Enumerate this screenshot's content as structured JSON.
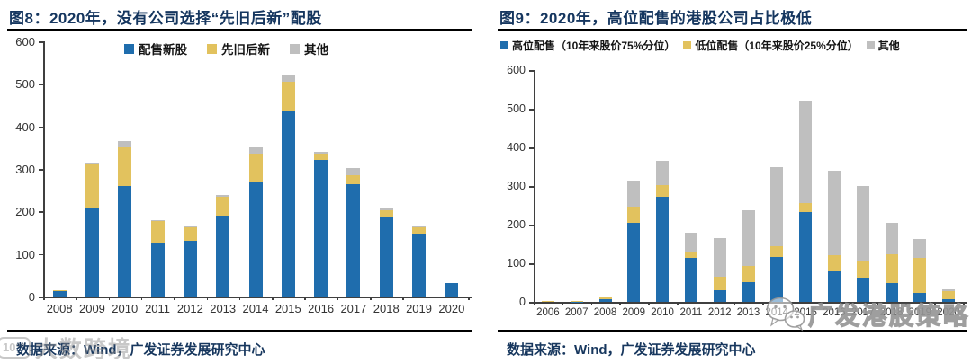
{
  "figures": [
    {
      "title": "图8：2020年，没有公司选择“先旧后新”配股",
      "source": "数据来源：Wind，广发证券发展研究中心"
    },
    {
      "title": "图9：2020年，高位配售的港股公司占比极低",
      "source": "数据来源：Wind，广发证券发展研究中心"
    }
  ],
  "watermarks": {
    "left": {
      "logo": "10°°",
      "text": "大数跨境"
    },
    "right": {
      "icon": "wechat-icon",
      "text": "广发港股策略"
    }
  },
  "colors": {
    "bar_blue": "#1F6DAD",
    "bar_yellow": "#E2C25E",
    "bar_gray": "#BFBFBF",
    "title_navy": "#15365f",
    "source_navy": "#17375e"
  },
  "chart_data": [
    {
      "type": "bar",
      "stacked": true,
      "title": "图8：2020年，没有公司选择“先旧后新”配股",
      "categories": [
        "2008",
        "2009",
        "2010",
        "2011",
        "2012",
        "2013",
        "2014",
        "2015",
        "2016",
        "2017",
        "2018",
        "2019",
        "2020"
      ],
      "series": [
        {
          "name": "配售新股",
          "color": "#1F6DAD",
          "values": [
            13,
            210,
            260,
            127,
            130,
            190,
            268,
            438,
            322,
            265,
            186,
            148,
            32
          ]
        },
        {
          "name": "先旧后新",
          "color": "#E2C25E",
          "values": [
            2,
            100,
            90,
            50,
            33,
            45,
            67,
            67,
            13,
            20,
            16,
            14,
            0
          ]
        },
        {
          "name": "其他",
          "color": "#BFBFBF",
          "values": [
            0,
            5,
            15,
            3,
            2,
            3,
            15,
            15,
            5,
            17,
            5,
            2,
            0
          ]
        }
      ],
      "xlabel": "",
      "ylabel": "",
      "ylim": [
        0,
        600
      ],
      "ytick_step": 100,
      "grid": false,
      "legend_position": "top-center"
    },
    {
      "type": "bar",
      "stacked": true,
      "title": "图9：2020年，高位配售的港股公司占比极低",
      "categories": [
        "2006",
        "2007",
        "2008",
        "2009",
        "2010",
        "2011",
        "2012",
        "2013",
        "2014",
        "2015",
        "2016",
        "2017",
        "2018",
        "2019",
        "2020"
      ],
      "series": [
        {
          "name": "高位配售（10年来股价75%分位）",
          "color": "#1F6DAD",
          "values": [
            0,
            1,
            8,
            205,
            272,
            115,
            31,
            51,
            117,
            233,
            80,
            62,
            48,
            24,
            6
          ]
        },
        {
          "name": "低位配售（10年来股价25%分位）",
          "color": "#E2C25E",
          "values": [
            2,
            2,
            3,
            42,
            30,
            15,
            34,
            42,
            28,
            23,
            42,
            42,
            75,
            90,
            22
          ]
        },
        {
          "name": "其他",
          "color": "#BFBFBF",
          "values": [
            0,
            0,
            4,
            68,
            63,
            50,
            100,
            145,
            205,
            264,
            218,
            196,
            82,
            49,
            5
          ]
        }
      ],
      "xlabel": "",
      "ylabel": "",
      "ylim": [
        0,
        600
      ],
      "ytick_step": 100,
      "grid": false,
      "legend_position": "top-left"
    }
  ]
}
